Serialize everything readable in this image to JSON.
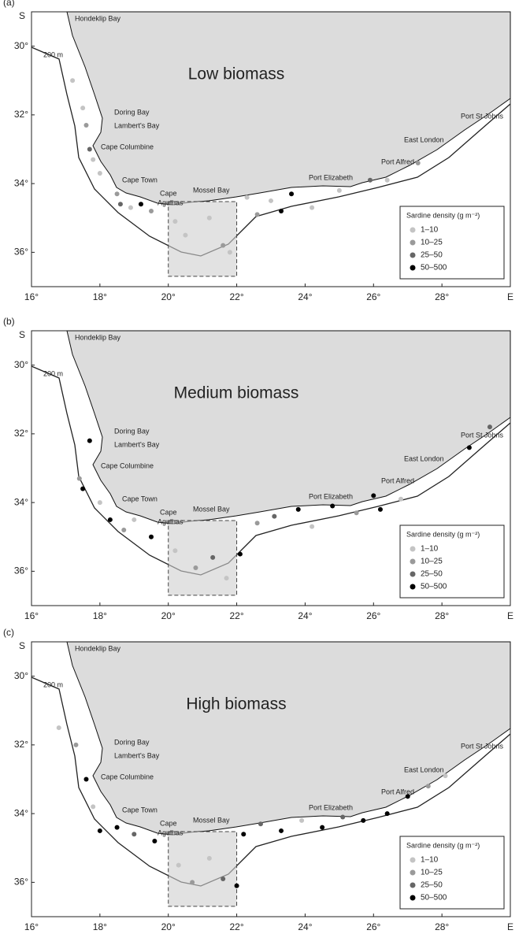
{
  "xlim": [
    16,
    30
  ],
  "ylim": [
    29,
    37
  ],
  "xticks": [
    {
      "value": 16,
      "label": "16°"
    },
    {
      "value": 18,
      "label": "18°"
    },
    {
      "value": 20,
      "label": "20°"
    },
    {
      "value": 22,
      "label": "22°"
    },
    {
      "value": 24,
      "label": "24°"
    },
    {
      "value": 26,
      "label": "26°"
    },
    {
      "value": 28,
      "label": "28°"
    },
    {
      "value": 30,
      "label": "E"
    }
  ],
  "yticks": [
    {
      "value": 30,
      "label": "30°"
    },
    {
      "value": 32,
      "label": "32°"
    },
    {
      "value": 34,
      "label": "34°"
    },
    {
      "value": 36,
      "label": "36°"
    }
  ],
  "y_label": "S",
  "isobath_label": "200 m",
  "places": [
    "Hondeklip Bay",
    "Doring Bay",
    "Lambert's Bay",
    "Cape Columbine",
    "Cape Town",
    "Cape",
    "Agulhas",
    "Mossel Bay",
    "Port Elizabeth",
    "Port Alfred",
    "East London",
    "Port St Johns"
  ],
  "legend": {
    "title": "Sardine density (g m⁻²)",
    "entries": [
      {
        "label": "1–10",
        "color": "#c4c4c4"
      },
      {
        "label": "10–25",
        "color": "#9a9a9a"
      },
      {
        "label": "25–50",
        "color": "#666666"
      },
      {
        "label": "50–500",
        "color": "#000000"
      }
    ]
  },
  "panels": [
    {
      "label": "(a)",
      "title": "Low biomass",
      "points": [
        [
          17.2,
          31,
          0
        ],
        [
          17.5,
          31.8,
          0
        ],
        [
          17.6,
          32.3,
          1
        ],
        [
          17.7,
          33,
          2
        ],
        [
          17.8,
          33.3,
          0
        ],
        [
          18,
          33.7,
          0
        ],
        [
          18.5,
          34.3,
          1
        ],
        [
          18.6,
          34.6,
          2
        ],
        [
          18.9,
          34.7,
          0
        ],
        [
          19.2,
          34.6,
          3
        ],
        [
          19.5,
          34.8,
          1
        ],
        [
          20.2,
          35.1,
          0
        ],
        [
          20.5,
          35.5,
          0
        ],
        [
          21.2,
          35,
          0
        ],
        [
          21.6,
          35.8,
          1
        ],
        [
          21.8,
          36,
          0
        ],
        [
          22.3,
          34.4,
          0
        ],
        [
          22.6,
          34.9,
          1
        ],
        [
          23,
          34.5,
          0
        ],
        [
          23.6,
          34.3,
          3
        ],
        [
          23.3,
          34.8,
          3
        ],
        [
          24.2,
          34.7,
          0
        ],
        [
          25,
          34.2,
          0
        ],
        [
          25.9,
          33.9,
          2
        ],
        [
          26.4,
          33.9,
          0
        ],
        [
          27.3,
          33.4,
          1
        ]
      ]
    },
    {
      "label": "(b)",
      "title": "Medium biomass",
      "points": [
        [
          17.7,
          32.2,
          3
        ],
        [
          17.4,
          33.3,
          1
        ],
        [
          17.5,
          33.6,
          3
        ],
        [
          18,
          34,
          0
        ],
        [
          18.3,
          34.5,
          3
        ],
        [
          18.7,
          34.8,
          1
        ],
        [
          19,
          34.5,
          0
        ],
        [
          19.5,
          35,
          3
        ],
        [
          20.2,
          35.4,
          0
        ],
        [
          20.8,
          35.9,
          1
        ],
        [
          21.3,
          35.6,
          2
        ],
        [
          21.7,
          36.2,
          0
        ],
        [
          22.1,
          35.5,
          3
        ],
        [
          22.6,
          34.6,
          1
        ],
        [
          23.1,
          34.4,
          2
        ],
        [
          23.8,
          34.2,
          3
        ],
        [
          24.2,
          34.7,
          0
        ],
        [
          24.8,
          34.1,
          3
        ],
        [
          25.5,
          34.3,
          1
        ],
        [
          26,
          33.8,
          3
        ],
        [
          26.2,
          34.2,
          3
        ],
        [
          26.8,
          33.9,
          0
        ],
        [
          28.8,
          32.4,
          3
        ],
        [
          29.4,
          31.8,
          2
        ]
      ]
    },
    {
      "label": "(c)",
      "title": "High biomass",
      "points": [
        [
          16.8,
          31.5,
          0
        ],
        [
          17.3,
          32,
          1
        ],
        [
          17.6,
          33,
          3
        ],
        [
          17.8,
          33.8,
          0
        ],
        [
          18,
          34.5,
          3
        ],
        [
          18.5,
          34.4,
          3
        ],
        [
          19,
          34.6,
          2
        ],
        [
          19.6,
          34.8,
          3
        ],
        [
          20.3,
          35.5,
          0
        ],
        [
          20.7,
          36,
          1
        ],
        [
          21.2,
          35.3,
          0
        ],
        [
          21.6,
          35.9,
          2
        ],
        [
          22,
          36.1,
          3
        ],
        [
          22.2,
          34.6,
          3
        ],
        [
          22.7,
          34.3,
          2
        ],
        [
          23.3,
          34.5,
          3
        ],
        [
          23.9,
          34.2,
          0
        ],
        [
          24.5,
          34.4,
          3
        ],
        [
          25.1,
          34.1,
          2
        ],
        [
          25.7,
          34.2,
          3
        ],
        [
          26.4,
          34,
          3
        ],
        [
          27,
          33.5,
          3
        ],
        [
          27.6,
          33.2,
          1
        ],
        [
          28.1,
          32.9,
          0
        ]
      ]
    }
  ]
}
